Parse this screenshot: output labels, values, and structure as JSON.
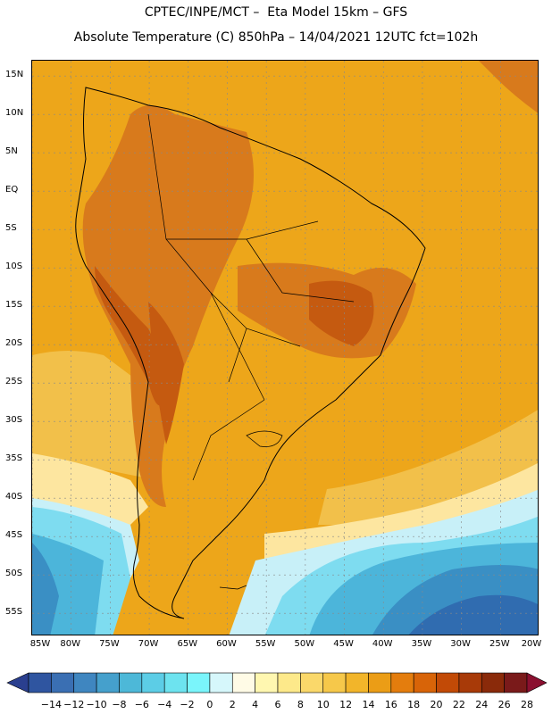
{
  "header": {
    "line1": "CPTEC/INPE/MCT –  Eta Model 15km – GFS",
    "line2": "Absolute Temperature (C) 850hPa – 14/04/2021 12UTC fct=102h"
  },
  "map": {
    "region": "South America",
    "lon_range": [
      -85,
      -20
    ],
    "lat_range": [
      -58,
      17
    ],
    "lat_ticks": [
      "15N",
      "10N",
      "5N",
      "EQ",
      "5S",
      "10S",
      "15S",
      "20S",
      "25S",
      "30S",
      "35S",
      "40S",
      "45S",
      "50S",
      "55S"
    ],
    "lat_values": [
      15,
      10,
      5,
      0,
      -5,
      -10,
      -15,
      -20,
      -25,
      -30,
      -35,
      -40,
      -45,
      -50,
      -55
    ],
    "lon_ticks": [
      "85W",
      "80W",
      "75W",
      "70W",
      "65W",
      "60W",
      "55W",
      "50W",
      "45W",
      "40W",
      "35W",
      "30W",
      "25W",
      "20W"
    ],
    "lon_values": [
      -85,
      -80,
      -75,
      -70,
      -65,
      -60,
      -55,
      -50,
      -45,
      -40,
      -35,
      -30,
      -25,
      -20
    ]
  },
  "colorbar": {
    "labels": [
      "-14",
      "-12",
      "-10",
      "-8",
      "-6",
      "-4",
      "-2",
      "0",
      "2",
      "4",
      "6",
      "8",
      "10",
      "12",
      "14",
      "16",
      "18",
      "20",
      "22",
      "24",
      "26",
      "28"
    ],
    "colors": [
      "#2a3f8f",
      "#2f55a0",
      "#3a6fb3",
      "#3f86c0",
      "#45a0cc",
      "#4db8d8",
      "#5ccde6",
      "#6de3ef",
      "#7af5fb",
      "#d6f7fb",
      "#fffbe6",
      "#fff7b0",
      "#fde98a",
      "#fad86a",
      "#f6c84a",
      "#f2b52a",
      "#eb9d16",
      "#e47d0d",
      "#d86408",
      "#c24a06",
      "#a83a08",
      "#8a2a0a",
      "#7a1a1a",
      "#8b1030"
    ]
  },
  "field_colors": {
    "hot_interior": "#d87a1c",
    "very_hot": "#c55a10",
    "warm": "#eda61a",
    "mild": "#f2c04a",
    "cool": "#fde6a0",
    "cold_1": "#c8f0f8",
    "cold_2": "#7edcf0",
    "cold_3": "#4cb5da",
    "cold_4": "#3a8fc4",
    "cold_5": "#306cb0"
  }
}
